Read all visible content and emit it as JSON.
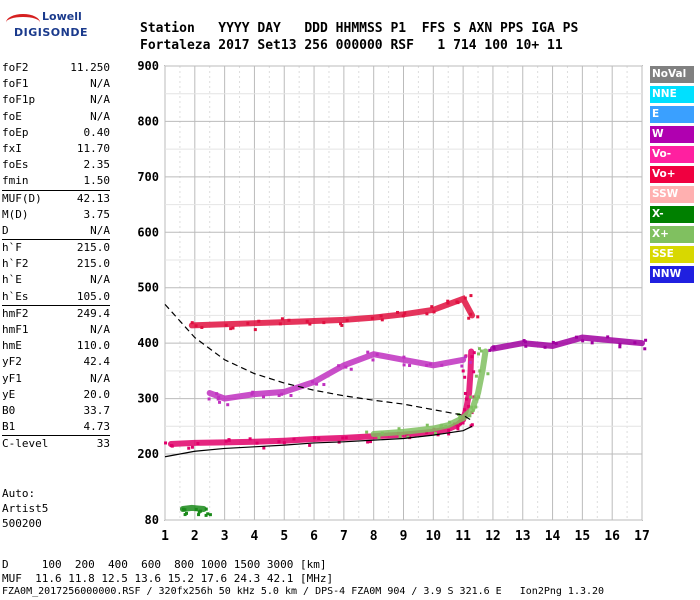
{
  "header": {
    "row1": "Station   YYYY DAY   DDD HHMMSS P1  FFS S AXN PPS IGA PS",
    "row2": "Fortaleza 2017 Set13 256 000000 RSF   1 714 100 10+ 11"
  },
  "logo": {
    "line1": "Lowell",
    "line2": "DIGISONDE"
  },
  "params": [
    {
      "name": "foF2",
      "value": "11.250"
    },
    {
      "name": "foF1",
      "value": "N/A"
    },
    {
      "name": "foF1p",
      "value": "N/A"
    },
    {
      "name": "foE",
      "value": "N/A"
    },
    {
      "name": "foEp",
      "value": "0.40"
    },
    {
      "name": "fxI",
      "value": "11.70"
    },
    {
      "name": "foEs",
      "value": "2.35"
    },
    {
      "name": "fmin",
      "value": "1.50"
    },
    {
      "name": "MUF(D)",
      "value": "42.13"
    },
    {
      "name": "M(D)",
      "value": "3.75"
    },
    {
      "name": "D",
      "value": "N/A"
    },
    {
      "name": "h`F",
      "value": "215.0"
    },
    {
      "name": "h`F2",
      "value": "215.0"
    },
    {
      "name": "h`E",
      "value": "N/A"
    },
    {
      "name": "h`Es",
      "value": "105.0"
    },
    {
      "name": "hmF2",
      "value": "249.4"
    },
    {
      "name": "hmF1",
      "value": "N/A"
    },
    {
      "name": "hmE",
      "value": "110.0"
    },
    {
      "name": "yF2",
      "value": "42.4"
    },
    {
      "name": "yF1",
      "value": "N/A"
    },
    {
      "name": "yE",
      "value": "20.0"
    },
    {
      "name": "B0",
      "value": "33.7"
    },
    {
      "name": "B1",
      "value": "4.73"
    },
    {
      "name": "C-level",
      "value": "33"
    }
  ],
  "auto": [
    "Auto:",
    "Artist5",
    "500200"
  ],
  "legend": [
    {
      "label": "NoVal",
      "color": "#808080"
    },
    {
      "label": "NNE",
      "color": "#00e0ff"
    },
    {
      "label": "E",
      "color": "#3aa0ff"
    },
    {
      "label": "W",
      "color": "#b000b0"
    },
    {
      "label": "Vo-",
      "color": "#ff20a0"
    },
    {
      "label": "Vo+",
      "color": "#f00040"
    },
    {
      "label": "SSW",
      "color": "#ffb0b0"
    },
    {
      "label": "X-",
      "color": "#008000"
    },
    {
      "label": "X+",
      "color": "#80c060"
    },
    {
      "label": "SSE",
      "color": "#d8d800"
    },
    {
      "label": "NNW",
      "color": "#2020e0"
    }
  ],
  "footer": {
    "dist_row": "D     100  200  400  600  800 1000 1500 3000 [km]",
    "muf_row": "MUF  11.6 11.8 12.5 13.6 15.2 17.6 24.3 42.1 [MHz]",
    "info_row": "FZA0M_2017256000000.RSF / 320fx256h 50 kHz 5.0 km / DPS-4 FZA0M 904 / 3.9 S 321.6 E   Ion2Png 1.3.20"
  },
  "chart_data": {
    "type": "scatter",
    "x_ticks": [
      1,
      2,
      3,
      4,
      5,
      6,
      7,
      8,
      9,
      10,
      11,
      12,
      13,
      14,
      15,
      16,
      17
    ],
    "y_ticks": [
      80,
      200,
      300,
      400,
      500,
      600,
      700,
      800,
      900
    ],
    "xlim": [
      1,
      17
    ],
    "ylim": [
      80,
      900
    ],
    "grid": true,
    "legend_position": "right",
    "traces": [
      {
        "name": "O-trace F2",
        "color": "#e0006a",
        "points": [
          [
            1.2,
            218
          ],
          [
            2,
            220
          ],
          [
            3,
            221
          ],
          [
            4,
            222
          ],
          [
            5,
            224
          ],
          [
            6,
            227
          ],
          [
            7,
            229
          ],
          [
            8,
            232
          ],
          [
            9,
            235
          ],
          [
            10,
            240
          ],
          [
            10.5,
            245
          ],
          [
            10.8,
            252
          ],
          [
            11,
            262
          ],
          [
            11.1,
            280
          ],
          [
            11.2,
            310
          ],
          [
            11.25,
            350
          ],
          [
            11.27,
            385
          ]
        ]
      },
      {
        "name": "X-trace F2",
        "color": "#80c060",
        "points": [
          [
            8,
            236
          ],
          [
            9,
            240
          ],
          [
            10,
            246
          ],
          [
            10.5,
            252
          ],
          [
            11,
            265
          ],
          [
            11.3,
            280
          ],
          [
            11.5,
            310
          ],
          [
            11.65,
            350
          ],
          [
            11.75,
            385
          ]
        ]
      },
      {
        "name": "Es echoes",
        "color": "#1a8a1a",
        "points": [
          [
            1.6,
            100
          ],
          [
            1.9,
            102
          ],
          [
            2.1,
            101
          ],
          [
            2.3,
            100
          ]
        ]
      },
      {
        "name": "Multiple F echoes",
        "color": "#e01040",
        "points": [
          [
            1.9,
            432
          ],
          [
            3,
            434
          ],
          [
            4,
            436
          ],
          [
            5,
            438
          ],
          [
            6,
            440
          ],
          [
            7,
            442
          ],
          [
            8,
            446
          ],
          [
            9,
            452
          ],
          [
            10,
            460
          ],
          [
            10.5,
            470
          ],
          [
            11,
            480
          ],
          [
            11.3,
            450
          ]
        ]
      },
      {
        "name": "Spread F",
        "color": "#c030c0",
        "points": [
          [
            2.5,
            310
          ],
          [
            3,
            300
          ],
          [
            4,
            308
          ],
          [
            5,
            312
          ],
          [
            6,
            330
          ],
          [
            7,
            360
          ],
          [
            8,
            380
          ],
          [
            9,
            370
          ],
          [
            10,
            360
          ],
          [
            11,
            370
          ]
        ]
      },
      {
        "name": "Oblique echoes",
        "color": "#a000a0",
        "points": [
          [
            12,
            390
          ],
          [
            13,
            400
          ],
          [
            14,
            395
          ],
          [
            15,
            410
          ],
          [
            16,
            405
          ],
          [
            17,
            400
          ]
        ]
      }
    ],
    "profile_curves": [
      {
        "name": "profile-solid",
        "points": [
          [
            1,
            195
          ],
          [
            2,
            205
          ],
          [
            3,
            210
          ],
          [
            4,
            213
          ],
          [
            5,
            216
          ],
          [
            6,
            220
          ],
          [
            7,
            222
          ],
          [
            8,
            225
          ],
          [
            9,
            228
          ],
          [
            10,
            234
          ],
          [
            11,
            242
          ],
          [
            11.3,
            250
          ]
        ]
      },
      {
        "name": "profile-dashed",
        "points": [
          [
            1,
            470
          ],
          [
            2,
            410
          ],
          [
            3,
            370
          ],
          [
            4,
            345
          ],
          [
            5,
            328
          ],
          [
            6,
            315
          ],
          [
            7,
            305
          ],
          [
            8,
            297
          ],
          [
            9,
            290
          ],
          [
            10,
            280
          ],
          [
            11,
            270
          ],
          [
            11.3,
            260
          ]
        ]
      }
    ]
  }
}
